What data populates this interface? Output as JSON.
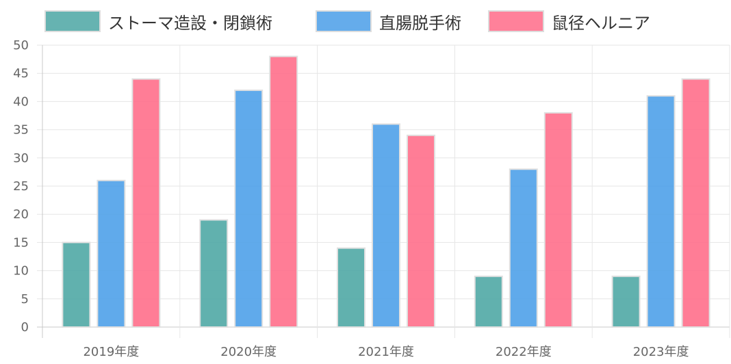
{
  "chart_data": {
    "type": "bar",
    "categories": [
      "2019年度",
      "2020年度",
      "2021年度",
      "2022年度",
      "2023年度"
    ],
    "series": [
      {
        "name": "ストーマ造設・閉鎖術",
        "values": [
          15,
          19,
          14,
          9,
          9
        ],
        "color": "#4ba6a3"
      },
      {
        "name": "直腸脱手術",
        "values": [
          26,
          42,
          36,
          28,
          41
        ],
        "color": "#4a9ee8"
      },
      {
        "name": "鼠径ヘルニア",
        "values": [
          44,
          48,
          34,
          38,
          44
        ],
        "color": "#ff6b88"
      }
    ],
    "ylim": [
      0,
      50
    ],
    "yticks": [
      0,
      5,
      10,
      15,
      20,
      25,
      30,
      35,
      40,
      45,
      50
    ],
    "grid": true,
    "legend_position": "top"
  }
}
